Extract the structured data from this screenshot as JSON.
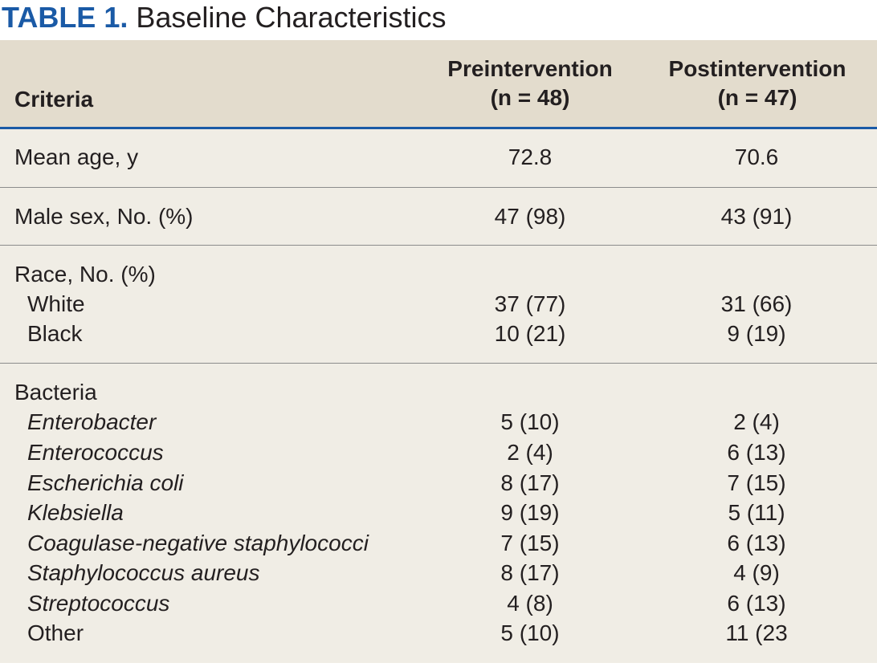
{
  "title": {
    "label": "TABLE 1.",
    "text": " Baseline Characteristics"
  },
  "header": {
    "criteria": "Criteria",
    "pre_line1": "Preintervention",
    "pre_line2": "(n = 48)",
    "post_line1": "Postintervention",
    "post_line2": "(n = 47)"
  },
  "rows": {
    "age": {
      "label": "Mean age, y",
      "pre": "72.8",
      "post": "70.6"
    },
    "sex": {
      "label": "Male sex, No. (%)",
      "pre": "47 (98)",
      "post": "43 (91)"
    },
    "race": {
      "label": "Race, No. (%)",
      "items": [
        {
          "label": "White",
          "pre": "37 (77)",
          "post": "31 (66)"
        },
        {
          "label": "Black",
          "pre": "10 (21)",
          "post": "9 (19)"
        }
      ]
    },
    "bacteria": {
      "label": "Bacteria",
      "items": [
        {
          "label": "Enterobacter",
          "pre": "5 (10)",
          "post": "2 (4)"
        },
        {
          "label": "Enterococcus",
          "pre": "2 (4)",
          "post": "6 (13)"
        },
        {
          "label": "Escherichia coli",
          "pre": "8 (17)",
          "post": "7 (15)"
        },
        {
          "label": "Klebsiella",
          "pre": "9 (19)",
          "post": "5 (11)"
        },
        {
          "label": "Coagulase-negative staphylococci",
          "pre": "7 (15)",
          "post": "6 (13)"
        },
        {
          "label": "Staphylococcus aureus",
          "pre": "8 (17)",
          "post": "4 (9)"
        },
        {
          "label": "Streptococcus",
          "pre": "4 (8)",
          "post": "6 (13)"
        },
        {
          "label": "Other",
          "pre": "5 (10)",
          "post": "11 (23"
        }
      ]
    }
  },
  "colors": {
    "title_label": "#1a5aa6",
    "header_background": "#e3dccd",
    "body_background": "#f0ede5",
    "header_rule": "#1a5aa6",
    "row_rule": "#8c8c8c",
    "text": "#231f20"
  }
}
